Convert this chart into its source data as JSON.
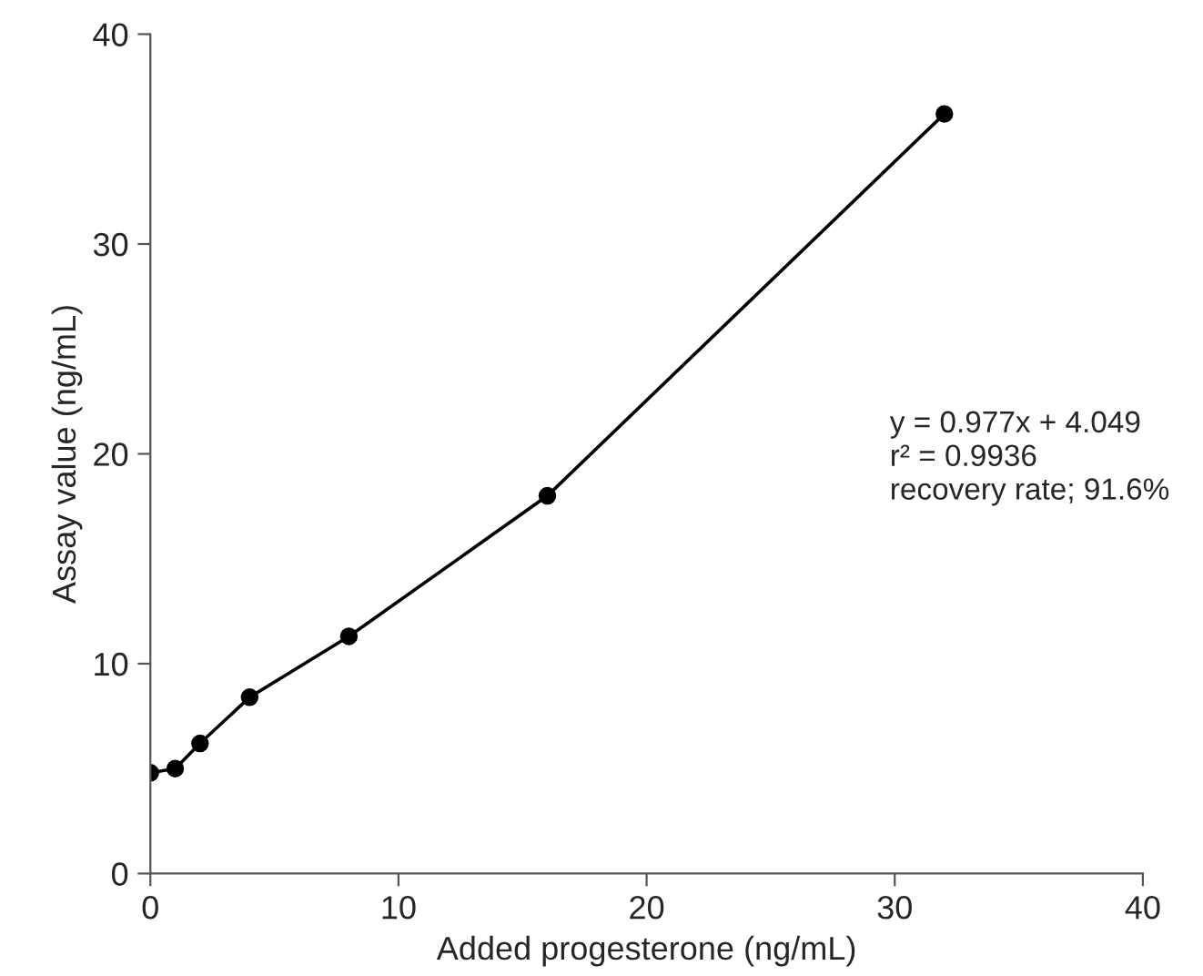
{
  "chart_data": {
    "type": "line",
    "xlabel": "Added progesterone (ng/mL)",
    "ylabel": "Assay value (ng/mL)",
    "x": [
      0,
      1,
      2,
      4,
      8,
      16,
      32
    ],
    "series": [
      {
        "color": "#000000",
        "values": [
          4.8,
          5.0,
          6.2,
          8.4,
          11.3,
          18.0,
          36.2
        ]
      }
    ],
    "xlim": [
      0,
      40
    ],
    "xticks": [
      0,
      10,
      20,
      30,
      40
    ],
    "ylim": [
      0,
      40
    ],
    "yticks": [
      0,
      10,
      20,
      30,
      40
    ],
    "grid": false,
    "marker": "circle",
    "line_style": "solid",
    "annotations": [
      "y = 0.977x + 4.049",
      "r² = 0.9936",
      "recovery rate; 91.6%"
    ]
  }
}
